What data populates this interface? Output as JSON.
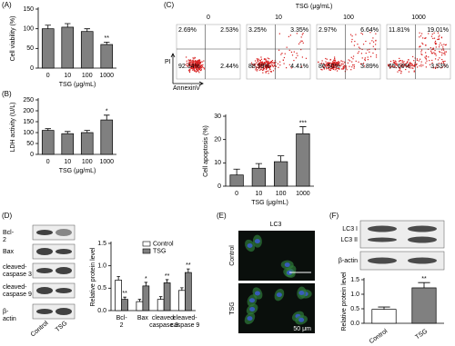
{
  "chart_data": [
    {
      "type": "bar",
      "panel": "(A)",
      "y_label": "Cell viability (%)",
      "x_label": "TSG (μg/mL)",
      "categories": [
        "0",
        "10",
        "100",
        "1000"
      ],
      "values": [
        100,
        104,
        93,
        60
      ],
      "errors": [
        9,
        9,
        7,
        6
      ],
      "significance": [
        null,
        null,
        null,
        "**"
      ],
      "color": "#808080",
      "ylim": [
        0,
        150
      ],
      "yticks": [
        0,
        50,
        100,
        150
      ]
    },
    {
      "type": "bar",
      "panel": "(B)",
      "y_label": "LDH activity (U/L)",
      "x_label": "TSG (μg/mL)",
      "categories": [
        "0",
        "10",
        "100",
        "1000"
      ],
      "values": [
        110,
        95,
        100,
        158
      ],
      "errors": [
        8,
        10,
        10,
        22
      ],
      "significance": [
        null,
        null,
        null,
        "*"
      ],
      "color": "#808080",
      "ylim": [
        0,
        250
      ],
      "yticks": [
        0,
        50,
        100,
        150,
        200,
        250
      ]
    },
    {
      "type": "bar",
      "y_label": "Cell apoptosis (%)",
      "x_label": "TSG (μg/mL)",
      "categories": [
        "0",
        "10",
        "100",
        "1000"
      ],
      "values": [
        4.8,
        7.7,
        10.5,
        22.5
      ],
      "errors": [
        2.5,
        2,
        2.5,
        3
      ],
      "significance": [
        null,
        null,
        null,
        "***"
      ],
      "color": "#808080",
      "ylim": [
        0,
        30
      ],
      "yticks": [
        0,
        10,
        20,
        30
      ]
    },
    {
      "type": "bar",
      "y_label": "Relative protein level",
      "categories": [
        "Bcl-2",
        "Bax",
        "cleaved-caspase 3",
        "cleaved-caspase 9"
      ],
      "series": [
        {
          "name": "Control",
          "color": "#ffffff",
          "values": [
            0.68,
            0.2,
            0.25,
            0.45
          ],
          "errors": [
            0.08,
            0.05,
            0.06,
            0.06
          ]
        },
        {
          "name": "TSG",
          "color": "#808080",
          "values": [
            0.25,
            0.55,
            0.62,
            0.85
          ],
          "errors": [
            0.05,
            0.08,
            0.07,
            0.08
          ],
          "significance": [
            "**",
            "*",
            "**",
            "**"
          ]
        }
      ],
      "ylim": [
        0,
        1.5
      ],
      "yticks": [
        {
          "value": 0,
          "label": "0.0"
        },
        {
          "value": 0.5,
          "label": "0.5"
        },
        {
          "value": 1,
          "label": "1.0"
        },
        {
          "value": 1.5,
          "label": "1.5"
        }
      ],
      "legend": "upper right"
    },
    {
      "type": "bar",
      "y_label": "Relative protein level",
      "categories": [
        "Control",
        "TSG"
      ],
      "values": [
        0.48,
        1.22
      ],
      "errors": [
        0.08,
        0.18
      ],
      "significance": [
        null,
        "**"
      ],
      "colors": [
        "#ffffff",
        "#808080"
      ],
      "ylim": [
        0,
        1.5
      ],
      "yticks": [
        {
          "value": 0,
          "label": "0.0"
        },
        {
          "value": 0.5,
          "label": "0.5"
        },
        {
          "value": 1,
          "label": "1.0"
        },
        {
          "value": 1.5,
          "label": "1.5"
        }
      ]
    }
  ],
  "flow": {
    "panel": "(C)",
    "header": "TSG (μg/mL)",
    "columns": [
      "0",
      "10",
      "100",
      "1000"
    ],
    "quadrants": [
      [
        "2.69%",
        "2.53%",
        "92.34%",
        "2.44%"
      ],
      [
        "3.25%",
        "3.35%",
        "88.99%",
        "4.41%"
      ],
      [
        "2.97%",
        "6.64%",
        "86.50%",
        "3.89%"
      ],
      [
        "11.81%",
        "19.01%",
        "65.66%",
        "3.53%"
      ]
    ],
    "y_label": "PI",
    "x_label": "AnnexinV"
  },
  "blot_d": {
    "panel": "(D)",
    "rows": [
      "Bcl-2",
      "Bax",
      "cleaved-caspase 3",
      "cleaved-caspase 9",
      "β-actin"
    ],
    "lanes": [
      "Control",
      "TSG"
    ]
  },
  "images_e": {
    "panel": "(E)",
    "title": "LC3",
    "rows": [
      "Control",
      "TSG"
    ],
    "scale": "50 μm"
  },
  "blot_f": {
    "panel": "(F)",
    "rows": [
      "LC3 I",
      "LC3 II",
      "β-actin"
    ]
  }
}
